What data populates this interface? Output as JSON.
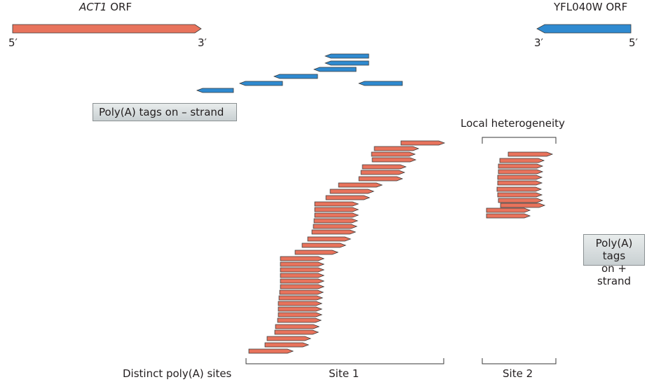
{
  "genes": {
    "left": {
      "name": "ACT1",
      "suffix": " ORF",
      "five": "5′",
      "three": "3′",
      "color": "#e8735c"
    },
    "right": {
      "name": "YFL040W ORF",
      "five": "5′",
      "three": "3′",
      "color": "#2f8ad0"
    }
  },
  "minus_label": "Poly(A) tags on – strand",
  "plus_label_line1": "Poly(A) tags",
  "plus_label_line2": "on + strand",
  "local_heterogeneity": "Local heterogeneity",
  "distinct_sites": "Distinct poly(A) sites",
  "site1": "Site 1",
  "site2": "Site 2",
  "colors": {
    "plus": "#e8735c",
    "minus": "#2f8ad0",
    "outline": "#3a3a3a"
  }
}
